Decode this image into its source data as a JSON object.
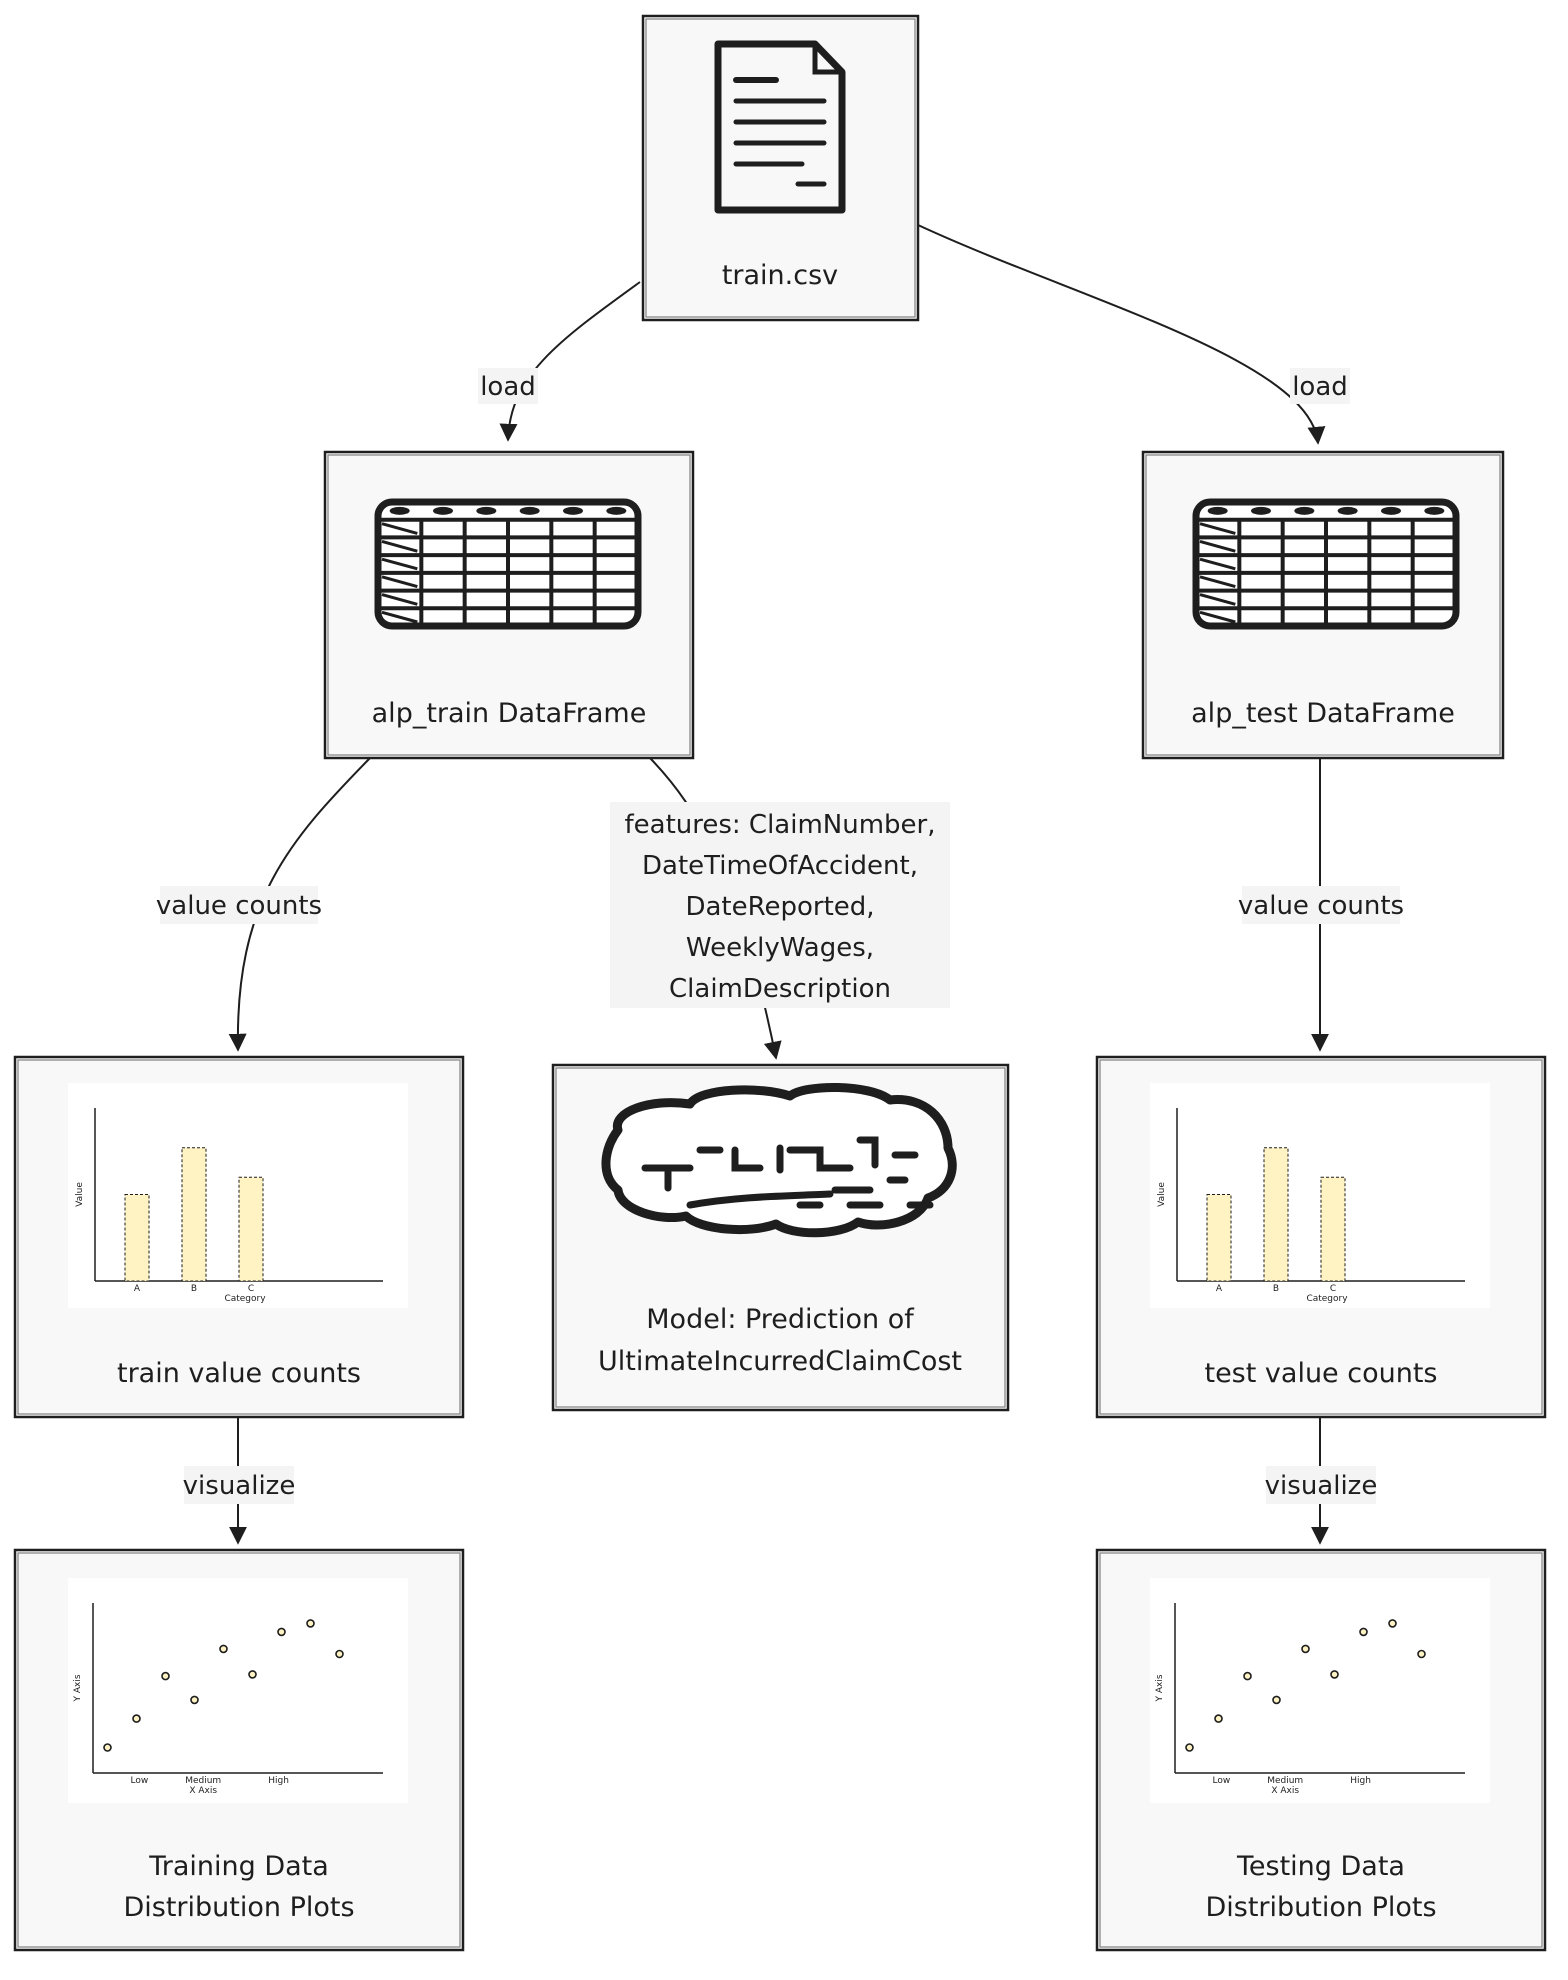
{
  "diagram": {
    "nodes": [
      {
        "id": "train_csv",
        "label": "train.csv",
        "icon": "document-icon"
      },
      {
        "id": "alp_train",
        "label": "alp_train DataFrame",
        "icon": "table-icon"
      },
      {
        "id": "alp_test",
        "label": "alp_test DataFrame",
        "icon": "table-icon"
      },
      {
        "id": "train_vc",
        "label": "train value counts",
        "icon": "bar-chart-icon"
      },
      {
        "id": "model",
        "label_lines": [
          "Model: Prediction of",
          "UltimateIncurredClaimCost"
        ],
        "icon": "brain-icon"
      },
      {
        "id": "test_vc",
        "label": "test value counts",
        "icon": "bar-chart-icon"
      },
      {
        "id": "train_plots",
        "label_lines": [
          "Training Data",
          "Distribution Plots"
        ],
        "icon": "scatter-chart-icon"
      },
      {
        "id": "test_plots",
        "label_lines": [
          "Testing Data",
          "Distribution Plots"
        ],
        "icon": "scatter-chart-icon"
      }
    ],
    "edges": [
      {
        "from": "train_csv",
        "to": "alp_train",
        "label": "load"
      },
      {
        "from": "train_csv",
        "to": "alp_test",
        "label": "load"
      },
      {
        "from": "alp_train",
        "to": "train_vc",
        "label": "value counts"
      },
      {
        "from": "alp_train",
        "to": "model",
        "label_lines": [
          "features: ClaimNumber,",
          "DateTimeOfAccident,",
          "DateReported,",
          "WeeklyWages,",
          "ClaimDescription"
        ]
      },
      {
        "from": "alp_test",
        "to": "test_vc",
        "label": "value counts"
      },
      {
        "from": "train_vc",
        "to": "train_plots",
        "label": "visualize"
      },
      {
        "from": "test_vc",
        "to": "test_plots",
        "label": "visualize"
      }
    ]
  },
  "bar_icon": {
    "categories": [
      "A",
      "B",
      "C"
    ],
    "values": [
      5,
      7.7,
      6
    ],
    "xlabel": "Category",
    "ylabel": "Value",
    "bar_color": "#fff3c4"
  },
  "scatter_icon": {
    "tick_labels": [
      "Low",
      "Medium",
      "High"
    ],
    "xlabel": "X Axis",
    "ylabel": "Y Axis",
    "points": [
      [
        0.05,
        0.15
      ],
      [
        0.15,
        0.32
      ],
      [
        0.25,
        0.57
      ],
      [
        0.35,
        0.43
      ],
      [
        0.45,
        0.73
      ],
      [
        0.55,
        0.58
      ],
      [
        0.65,
        0.83
      ],
      [
        0.75,
        0.88
      ],
      [
        0.85,
        0.7
      ]
    ]
  },
  "colors": {
    "stroke": "#1e1e1e",
    "node_fill": "#f8f8f8",
    "label_bg": "#f4f4f4"
  }
}
